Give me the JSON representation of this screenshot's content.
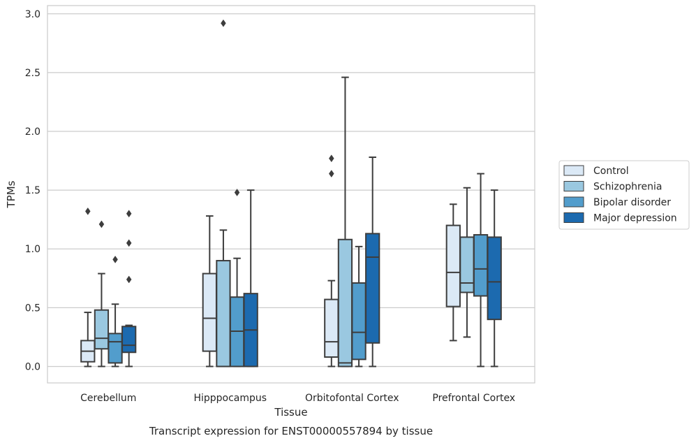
{
  "caption": "Transcript expression for ENST00000557894 by tissue",
  "chart_data": {
    "type": "boxplot",
    "xlabel": "Tissue",
    "ylabel": "TPMs",
    "ylim": [
      -0.14,
      3.07
    ],
    "yticks": [
      0.0,
      0.5,
      1.0,
      1.5,
      2.0,
      2.5,
      3.0
    ],
    "ytick_labels": [
      "0.0",
      "0.5",
      "1.0",
      "1.5",
      "2.0",
      "2.5",
      "3.0"
    ],
    "grid": "horizontal",
    "legend_position": "right",
    "categories": [
      "Cerebellum",
      "Hipppocampus",
      "Orbitofontal Cortex",
      "Prefrontal Cortex"
    ],
    "series": [
      {
        "name": "Control",
        "color": "#dbe9f6",
        "boxes": [
          {
            "whislo": 0.0,
            "q1": 0.04,
            "med": 0.13,
            "q3": 0.22,
            "whishi": 0.46,
            "fliers": [
              1.32
            ]
          },
          {
            "whislo": 0.0,
            "q1": 0.13,
            "med": 0.41,
            "q3": 0.79,
            "whishi": 1.28,
            "fliers": []
          },
          {
            "whislo": 0.0,
            "q1": 0.08,
            "med": 0.21,
            "q3": 0.57,
            "whishi": 0.73,
            "fliers": [
              1.64,
              1.77
            ]
          },
          {
            "whislo": 0.22,
            "q1": 0.51,
            "med": 0.8,
            "q3": 1.2,
            "whishi": 1.38,
            "fliers": []
          }
        ]
      },
      {
        "name": "Schizophrenia",
        "color": "#9ac8e0",
        "boxes": [
          {
            "whislo": 0.0,
            "q1": 0.15,
            "med": 0.24,
            "q3": 0.48,
            "whishi": 0.79,
            "fliers": [
              1.21
            ]
          },
          {
            "whislo": 0.0,
            "q1": 0.0,
            "med": 0.0,
            "q3": 0.9,
            "whishi": 1.16,
            "fliers": [
              2.92
            ]
          },
          {
            "whislo": 0.0,
            "q1": 0.0,
            "med": 0.03,
            "q3": 1.08,
            "whishi": 2.46,
            "fliers": []
          },
          {
            "whislo": 0.25,
            "q1": 0.63,
            "med": 0.71,
            "q3": 1.1,
            "whishi": 1.52,
            "fliers": []
          }
        ]
      },
      {
        "name": "Bipolar disorder",
        "color": "#529dcc",
        "boxes": [
          {
            "whislo": 0.0,
            "q1": 0.03,
            "med": 0.21,
            "q3": 0.28,
            "whishi": 0.53,
            "fliers": [
              0.91
            ]
          },
          {
            "whislo": 0.0,
            "q1": 0.0,
            "med": 0.3,
            "q3": 0.59,
            "whishi": 0.92,
            "fliers": [
              1.48
            ]
          },
          {
            "whislo": 0.0,
            "q1": 0.06,
            "med": 0.29,
            "q3": 0.71,
            "whishi": 1.02,
            "fliers": []
          },
          {
            "whislo": 0.0,
            "q1": 0.6,
            "med": 0.83,
            "q3": 1.12,
            "whishi": 1.64,
            "fliers": []
          }
        ]
      },
      {
        "name": "Major depression",
        "color": "#1c6aaf",
        "boxes": [
          {
            "whislo": 0.0,
            "q1": 0.12,
            "med": 0.18,
            "q3": 0.34,
            "whishi": 0.35,
            "fliers": [
              0.74,
              1.05,
              1.3
            ]
          },
          {
            "whislo": 0.0,
            "q1": 0.0,
            "med": 0.31,
            "q3": 0.62,
            "whishi": 1.5,
            "fliers": []
          },
          {
            "whislo": 0.0,
            "q1": 0.2,
            "med": 0.93,
            "q3": 1.13,
            "whishi": 1.78,
            "fliers": []
          },
          {
            "whislo": 0.0,
            "q1": 0.4,
            "med": 0.72,
            "q3": 1.1,
            "whishi": 1.5,
            "fliers": []
          }
        ]
      }
    ]
  }
}
